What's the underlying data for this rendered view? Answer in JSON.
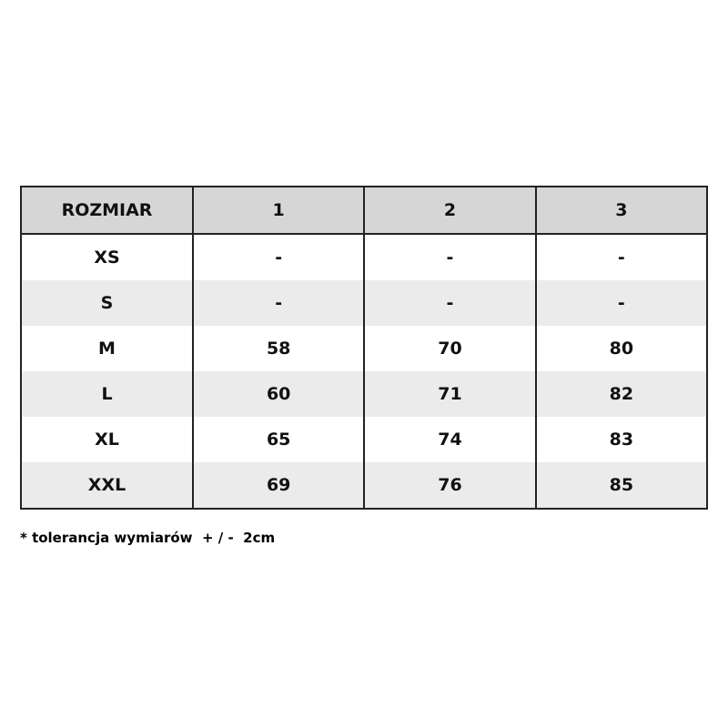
{
  "table": {
    "header": [
      "ROZMIAR",
      "1",
      "2",
      "3"
    ],
    "rows": [
      [
        "XS",
        "-",
        "-",
        "-"
      ],
      [
        "S",
        "-",
        "-",
        "-"
      ],
      [
        "M",
        "58",
        "70",
        "80"
      ],
      [
        "L",
        "60",
        "71",
        "82"
      ],
      [
        "XL",
        "65",
        "74",
        "83"
      ],
      [
        "XXL",
        "69",
        "76",
        "85"
      ]
    ]
  },
  "footnote": "* tolerancja wymiarów  + / -  2cm"
}
